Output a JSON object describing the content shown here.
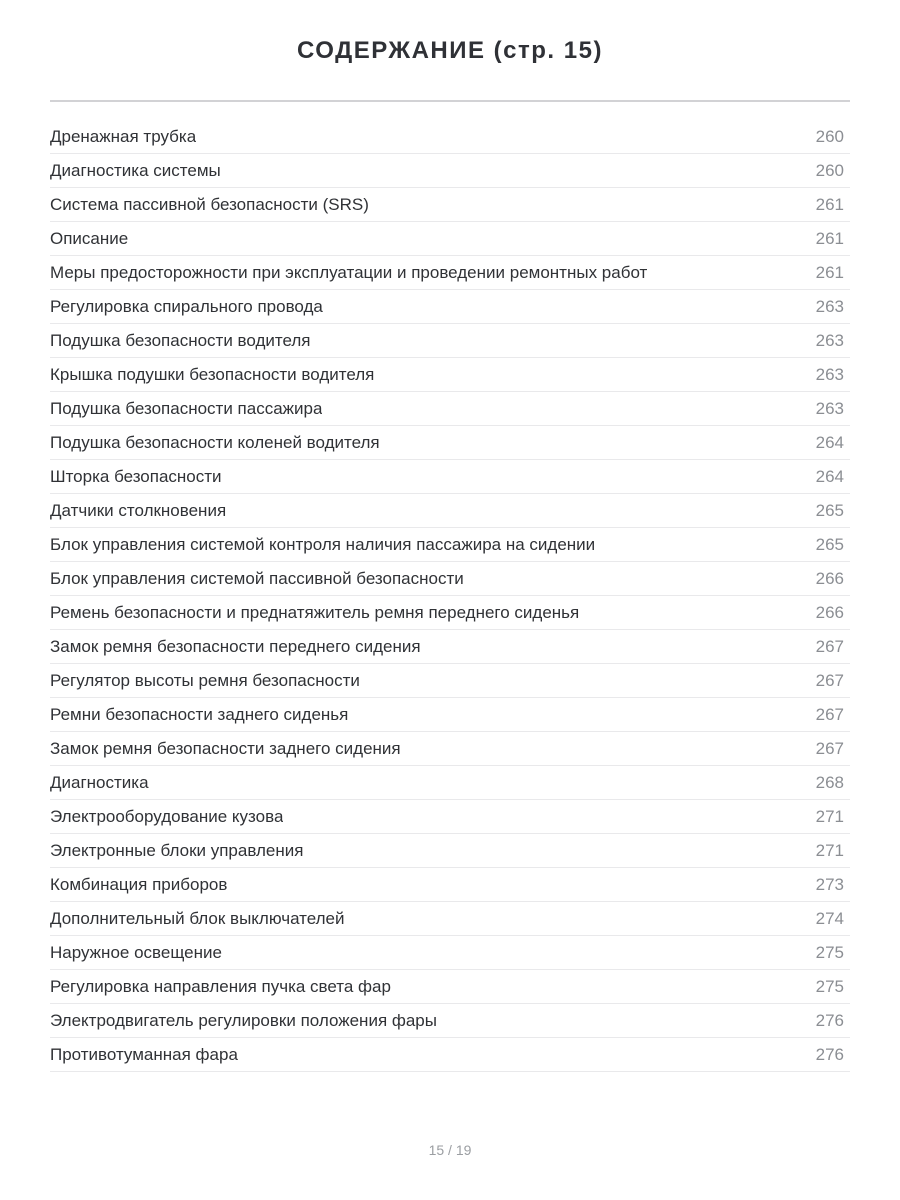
{
  "page": {
    "title": "СОДЕРЖАНИЕ (стр. 15)",
    "pager": "15 / 19"
  },
  "toc": {
    "items": [
      {
        "label": "Дренажная трубка",
        "page": "260"
      },
      {
        "label": "Диагностика системы",
        "page": "260"
      },
      {
        "label": "Система пассивной безопасности (SRS)",
        "page": "261"
      },
      {
        "label": "Описание",
        "page": "261"
      },
      {
        "label": "Меры предосторожности при эксплуатации и проведении ремонтных работ",
        "page": "261"
      },
      {
        "label": "Регулировка спирального провода",
        "page": "263"
      },
      {
        "label": "Подушка безопасности водителя",
        "page": "263"
      },
      {
        "label": "Крышка подушки безопасности водителя",
        "page": "263"
      },
      {
        "label": "Подушка безопасности пассажира",
        "page": "263"
      },
      {
        "label": "Подушка безопасности коленей водителя",
        "page": "264"
      },
      {
        "label": "Шторка безопасности",
        "page": "264"
      },
      {
        "label": "Датчики столкновения",
        "page": "265"
      },
      {
        "label": "Блок управления системой контроля наличия пассажира на сидении",
        "page": "265"
      },
      {
        "label": "Блок управления системой пассивной безопасности",
        "page": "266"
      },
      {
        "label": "Ремень безопасности и преднатяжитель ремня переднего сиденья",
        "page": "266"
      },
      {
        "label": "Замок ремня безопасности переднего сидения",
        "page": "267"
      },
      {
        "label": "Регулятор высоты ремня безопасности",
        "page": "267"
      },
      {
        "label": "Ремни безопасности заднего сиденья",
        "page": "267"
      },
      {
        "label": "Замок ремня безопасности заднего сидения",
        "page": "267"
      },
      {
        "label": "Диагностика",
        "page": "268"
      },
      {
        "label": "Электрооборудование кузова",
        "page": "271"
      },
      {
        "label": "Электронные блоки управления",
        "page": "271"
      },
      {
        "label": "Комбинация приборов",
        "page": "273"
      },
      {
        "label": "Дополнительный блок выключателей",
        "page": "274"
      },
      {
        "label": "Наружное освещение",
        "page": "275"
      },
      {
        "label": "Регулировка направления пучка света фар",
        "page": "275"
      },
      {
        "label": "Электродвигатель регулировки положения фары",
        "page": "276"
      },
      {
        "label": "Противотуманная фара",
        "page": "276"
      }
    ]
  },
  "colors": {
    "item_text": "#303236",
    "page_number": "#8b8e93",
    "separator": "#e9e9eb",
    "title_rule": "#d2d2d5",
    "title_text": "#2f3136",
    "footer_text": "#9b9ea2",
    "background": "#ffffff"
  }
}
